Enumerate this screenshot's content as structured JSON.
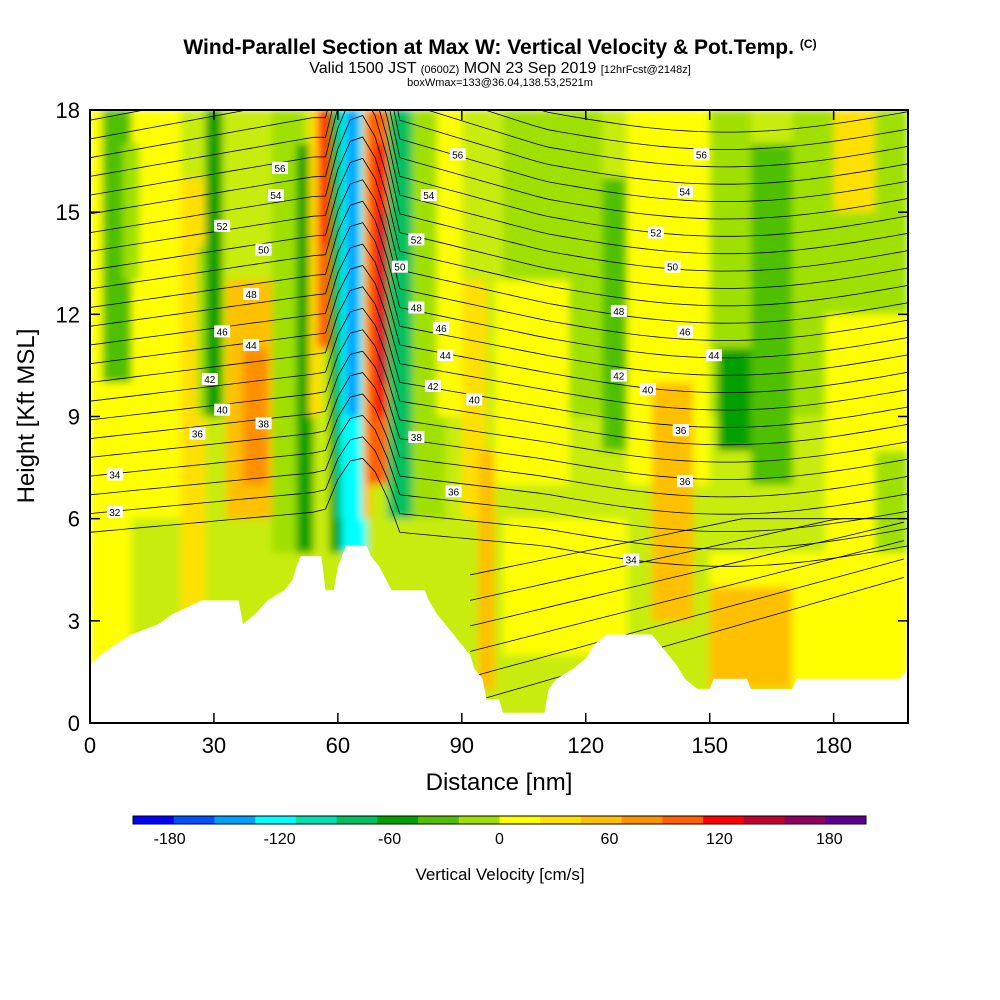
{
  "header": {
    "title": "Wind-Parallel Section at Max W: Vertical Velocity & Pot.Temp.",
    "copyright": "(C)",
    "subtitle_main_a": "Valid 1500 JST",
    "subtitle_utc": "(0600Z)",
    "subtitle_main_b": "MON 23 Sep 2019",
    "subtitle_fcst": "[12hrFcst@2148z]",
    "box_info": "boxWmax=133@36.04,138.53,2521m"
  },
  "chart_data": {
    "type": "heatmap",
    "xlabel": "Distance [nm]",
    "ylabel": "Height [Kft MSL]",
    "xlim": [
      0,
      198
    ],
    "ylim": [
      0,
      18
    ],
    "x_ticks": [
      "0",
      "30",
      "60",
      "90",
      "120",
      "150",
      "180"
    ],
    "y_ticks": [
      "0",
      "3",
      "6",
      "9",
      "12",
      "15",
      "18"
    ],
    "colorbar": {
      "title": "Vertical Velocity [cm/s]",
      "tick_labels": [
        "-180",
        "-120",
        "-60",
        "0",
        "60",
        "120",
        "180"
      ],
      "tick_values": [
        -180,
        -120,
        -60,
        0,
        60,
        120,
        180
      ],
      "colors": [
        "#0000ff",
        "#0050ff",
        "#00a0ff",
        "#00ffff",
        "#00e0b0",
        "#00c060",
        "#00a000",
        "#50c000",
        "#a0e000",
        "#ffff00",
        "#ffe000",
        "#ffc000",
        "#ff9000",
        "#ff6000",
        "#ff0000",
        "#c00030",
        "#900060",
        "#600090"
      ]
    },
    "contour_field": "Potential Temperature",
    "contour_labels": [
      {
        "text": "32",
        "x": 6,
        "y": 6.2
      },
      {
        "text": "34",
        "x": 6,
        "y": 7.3
      },
      {
        "text": "36",
        "x": 26,
        "y": 8.5
      },
      {
        "text": "40",
        "x": 32,
        "y": 9.2
      },
      {
        "text": "42",
        "x": 29,
        "y": 10.1
      },
      {
        "text": "46",
        "x": 32,
        "y": 11.5
      },
      {
        "text": "48",
        "x": 39,
        "y": 12.6
      },
      {
        "text": "50",
        "x": 42,
        "y": 13.9
      },
      {
        "text": "52",
        "x": 32,
        "y": 14.6
      },
      {
        "text": "54",
        "x": 45,
        "y": 15.5
      },
      {
        "text": "56",
        "x": 46,
        "y": 16.3
      },
      {
        "text": "44",
        "x": 39,
        "y": 11.1
      },
      {
        "text": "38",
        "x": 42,
        "y": 8.8
      },
      {
        "text": "50",
        "x": 75,
        "y": 13.4
      },
      {
        "text": "52",
        "x": 79,
        "y": 14.2
      },
      {
        "text": "54",
        "x": 82,
        "y": 15.5
      },
      {
        "text": "56",
        "x": 89,
        "y": 16.7
      },
      {
        "text": "48",
        "x": 79,
        "y": 12.2
      },
      {
        "text": "46",
        "x": 85,
        "y": 11.6
      },
      {
        "text": "44",
        "x": 86,
        "y": 10.8
      },
      {
        "text": "42",
        "x": 83,
        "y": 9.9
      },
      {
        "text": "40",
        "x": 93,
        "y": 9.5
      },
      {
        "text": "38",
        "x": 79,
        "y": 8.4
      },
      {
        "text": "36",
        "x": 88,
        "y": 6.8
      },
      {
        "text": "34",
        "x": 131,
        "y": 4.8
      },
      {
        "text": "36",
        "x": 144,
        "y": 7.1
      },
      {
        "text": "36",
        "x": 143,
        "y": 8.6
      },
      {
        "text": "40",
        "x": 135,
        "y": 9.8
      },
      {
        "text": "42",
        "x": 128,
        "y": 10.2
      },
      {
        "text": "44",
        "x": 151,
        "y": 10.8
      },
      {
        "text": "46",
        "x": 144,
        "y": 11.5
      },
      {
        "text": "48",
        "x": 128,
        "y": 12.1
      },
      {
        "text": "50",
        "x": 141,
        "y": 13.4
      },
      {
        "text": "52",
        "x": 137,
        "y": 14.4
      },
      {
        "text": "54",
        "x": 144,
        "y": 15.6
      },
      {
        "text": "56",
        "x": 148,
        "y": 16.7
      }
    ],
    "terrain_top_kft": [
      [
        0,
        1.7
      ],
      [
        2.5,
        2.0
      ],
      [
        6,
        2.3
      ],
      [
        10,
        2.6
      ],
      [
        16.5,
        2.9
      ],
      [
        20,
        3.2
      ],
      [
        23.5,
        3.4
      ],
      [
        27,
        3.6
      ],
      [
        36,
        3.6
      ],
      [
        37,
        2.9
      ],
      [
        40,
        3.2
      ],
      [
        43,
        3.6
      ],
      [
        47,
        3.9
      ],
      [
        49,
        4.2
      ],
      [
        50,
        4.6
      ],
      [
        51,
        4.9
      ],
      [
        56,
        4.9
      ],
      [
        57,
        3.9
      ],
      [
        59,
        3.9
      ],
      [
        60,
        4.6
      ],
      [
        61,
        4.9
      ],
      [
        62,
        5.2
      ],
      [
        67,
        5.2
      ],
      [
        68,
        4.9
      ],
      [
        70,
        4.6
      ],
      [
        73,
        3.9
      ],
      [
        81,
        3.9
      ],
      [
        82,
        3.6
      ],
      [
        84,
        3.2
      ],
      [
        86,
        2.9
      ],
      [
        88,
        2.6
      ],
      [
        90,
        2.3
      ],
      [
        92,
        2.0
      ],
      [
        93,
        1.6
      ],
      [
        95,
        1.3
      ],
      [
        96,
        0.7
      ],
      [
        99,
        0.7
      ],
      [
        100,
        0.3
      ],
      [
        110,
        0.3
      ],
      [
        111,
        1.0
      ],
      [
        113,
        1.3
      ],
      [
        117,
        1.6
      ],
      [
        120,
        1.9
      ],
      [
        122,
        2.3
      ],
      [
        125,
        2.6
      ],
      [
        136,
        2.6
      ],
      [
        138,
        2.3
      ],
      [
        140,
        2.0
      ],
      [
        142,
        1.7
      ],
      [
        144,
        1.3
      ],
      [
        147,
        1.0
      ],
      [
        150,
        1.0
      ],
      [
        151,
        1.3
      ],
      [
        159,
        1.3
      ],
      [
        160,
        1.0
      ],
      [
        170,
        1.0
      ],
      [
        171,
        1.3
      ],
      [
        196,
        1.3
      ],
      [
        198,
        1.6
      ],
      [
        198,
        0
      ],
      [
        0,
        0
      ]
    ]
  }
}
